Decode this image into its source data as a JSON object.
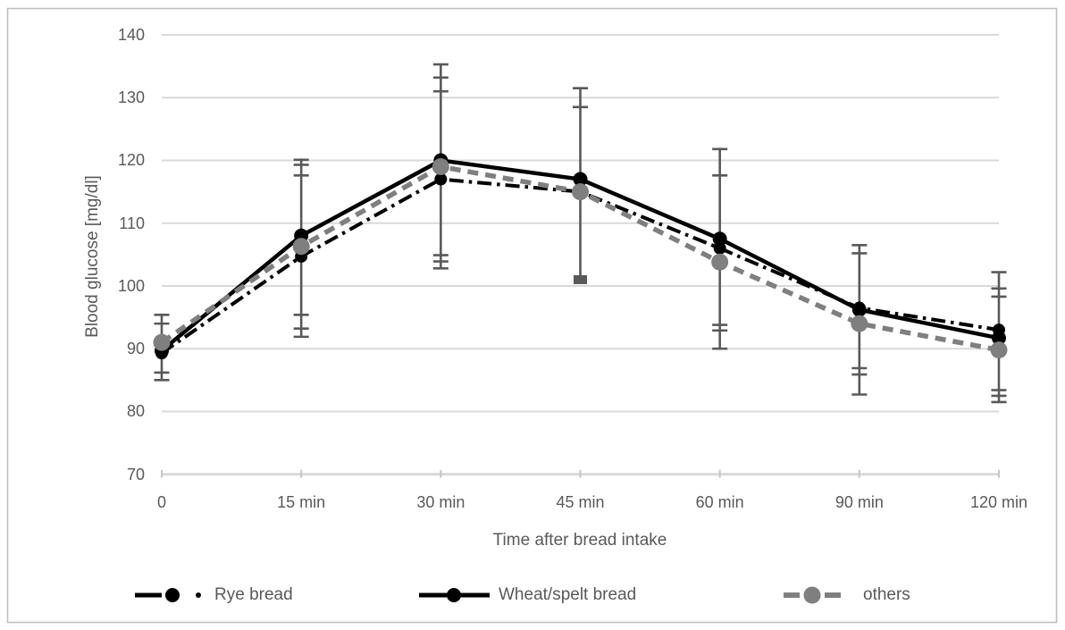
{
  "chart_data": {
    "type": "line",
    "title": "",
    "xlabel": "Time after bread intake",
    "ylabel": "Blood glucose [mg/dl]",
    "categories": [
      "0",
      "15 min",
      "30 min",
      "45 min",
      "60 min",
      "90 min",
      "120 min"
    ],
    "y_ticks": [
      70,
      80,
      90,
      100,
      110,
      120,
      130,
      140
    ],
    "ylim": [
      70,
      140
    ],
    "grid": true,
    "legend_position": "bottom",
    "series": [
      {
        "name": "Rye bread",
        "color": "#000000",
        "line_style": "dashdot",
        "marker": "circle",
        "values": [
          89.3,
          104.7,
          117,
          115,
          106,
          96.5,
          93
        ]
      },
      {
        "name": "Wheat/spelt bread",
        "color": "#000000",
        "line_style": "solid",
        "marker": "circle",
        "values": [
          89.7,
          108,
          120,
          117,
          107.5,
          96.2,
          91.7
        ]
      },
      {
        "name": "others",
        "color": "#7f7f7f",
        "line_style": "dashed",
        "marker": "circle",
        "values": [
          91,
          106.3,
          119,
          115,
          103.8,
          94,
          89.8
        ]
      }
    ],
    "error_bars": [
      {
        "category": "0",
        "max": 95.6,
        "min": 85.0,
        "caps_top": [
          95.4,
          94.0
        ],
        "caps_bottom": [
          86.2,
          85.0
        ]
      },
      {
        "category": "15 min",
        "max": 120.3,
        "min": 91.9,
        "caps_top": [
          120.1,
          119.3,
          117.6
        ],
        "caps_bottom": [
          95.4,
          93.2,
          91.9
        ]
      },
      {
        "category": "30 min",
        "max": 135.4,
        "min": 102.8,
        "caps_top": [
          135.3,
          133.2,
          131.0
        ],
        "caps_bottom": [
          104.9,
          103.9,
          102.8
        ]
      },
      {
        "category": "45 min",
        "max": 131.6,
        "min": 101.0,
        "caps_top": [
          131.5,
          128.5
        ],
        "caps_bottom": [],
        "square_cap_bottom": 101.0
      },
      {
        "category": "60 min",
        "max": 122.0,
        "min": 90.0,
        "caps_top": [
          121.8,
          117.6
        ],
        "caps_bottom": [
          93.8,
          92.9,
          90.0
        ]
      },
      {
        "category": "90 min",
        "max": 106.6,
        "min": 82.7,
        "caps_top": [
          106.5,
          105.2
        ],
        "caps_bottom": [
          86.9,
          85.9,
          82.7
        ]
      },
      {
        "category": "120 min",
        "max": 102.2,
        "min": 81.5,
        "caps_top": [
          102.2,
          99.6,
          98.3
        ],
        "caps_bottom": [
          83.4,
          82.5,
          81.5
        ]
      }
    ],
    "colors": {
      "gridline": "#d9d9d9",
      "axis_line": "#d9d9d9",
      "axis_tick": "#c6c6c6",
      "error_bar": "#595959",
      "text": "#595959",
      "frame_border": "#bfbfbf",
      "background": "#ffffff"
    }
  }
}
